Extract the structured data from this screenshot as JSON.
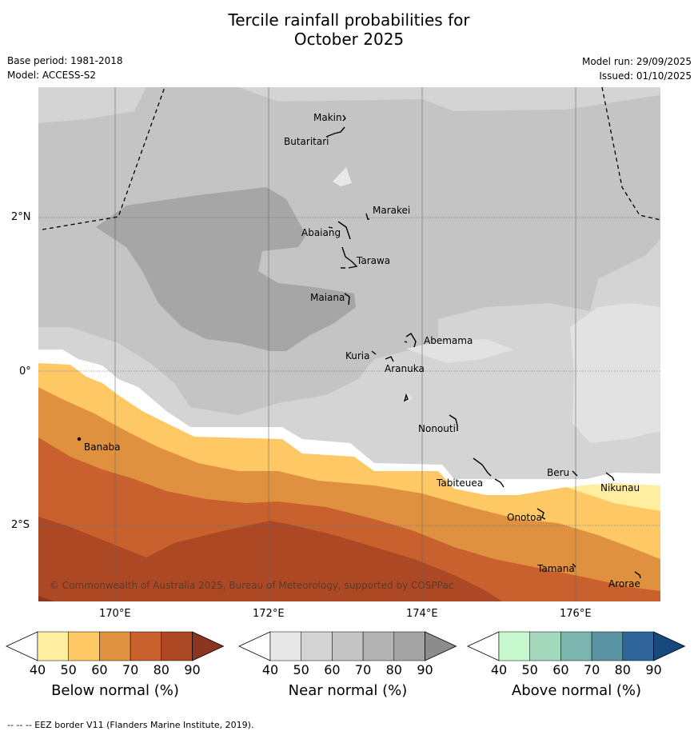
{
  "title": {
    "line1": "Tercile rainfall probabilities for",
    "line2": "October 2025"
  },
  "meta": {
    "base_period": "Base period: 1981-2018",
    "model": "Model: ACCESS-S2",
    "model_run": "Model run: 29/09/2025",
    "issued": "Issued: 01/10/2025"
  },
  "axes": {
    "lat_labels": [
      "2°N",
      "0°",
      "2°S"
    ],
    "lon_labels": [
      "170°E",
      "172°E",
      "174°E",
      "176°E"
    ]
  },
  "places": [
    "Makin",
    "Butaritari",
    "Marakei",
    "Abaiang",
    "Tarawa",
    "Maiana",
    "Abemama",
    "Kuria",
    "Aranuka",
    "Nonouti",
    "Banaba",
    "Tabiteuea",
    "Beru",
    "Nikunau",
    "Onotoa",
    "Tamana",
    "Arorae"
  ],
  "copyright": "© Commonwealth of Australia 2025, Bureau of Meteorology, supported by COSPPac",
  "colorbars": [
    {
      "title": "Below normal (%)",
      "ticks": [
        "40",
        "50",
        "60",
        "70",
        "80",
        "90"
      ],
      "colors": [
        "#ffffff",
        "#ffeda0",
        "#fec965",
        "#e0913f",
        "#c8612e",
        "#ad4824",
        "#8b3520"
      ]
    },
    {
      "title": "Near normal (%)",
      "ticks": [
        "40",
        "50",
        "60",
        "70",
        "80",
        "90"
      ],
      "colors": [
        "#ffffff",
        "#e8e8e8",
        "#d4d4d4",
        "#c4c4c4",
        "#b2b2b2",
        "#a4a4a4",
        "#8c8c8c"
      ]
    },
    {
      "title": "Above normal (%)",
      "ticks": [
        "40",
        "50",
        "60",
        "70",
        "80",
        "90"
      ],
      "colors": [
        "#ffffff",
        "#c8f8ce",
        "#a4d8bc",
        "#7cb4b0",
        "#5a94a4",
        "#2e6498",
        "#17497c"
      ]
    }
  ],
  "footer": "--  --  -- EEZ border V11 (Flanders Marine Institute, 2019)."
}
